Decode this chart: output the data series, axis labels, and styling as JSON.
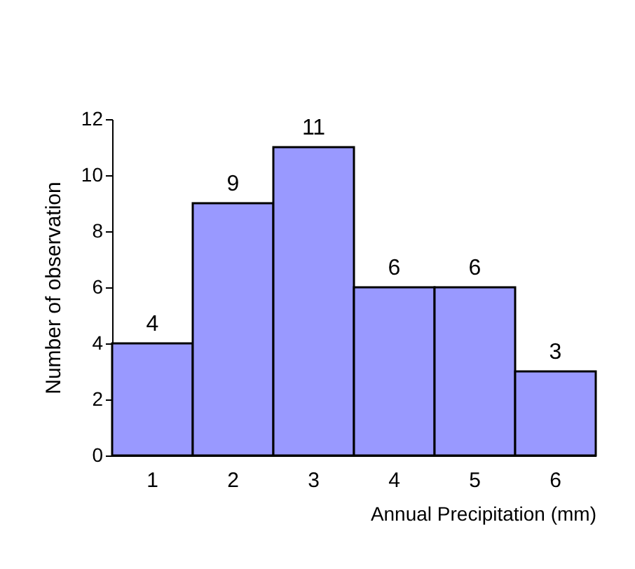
{
  "chart_data": {
    "type": "bar",
    "xlabel": "Annual Precipitation (mm)",
    "ylabel": "Number of observation",
    "categories": [
      "1",
      "2",
      "3",
      "4",
      "5",
      "6"
    ],
    "values": [
      4,
      9,
      11,
      6,
      6,
      3
    ],
    "color": "#9999ff",
    "ylim": [
      0,
      12
    ],
    "yticks": [
      0,
      2,
      4,
      6,
      8,
      10,
      12
    ],
    "data_labels": true,
    "grid": false
  }
}
